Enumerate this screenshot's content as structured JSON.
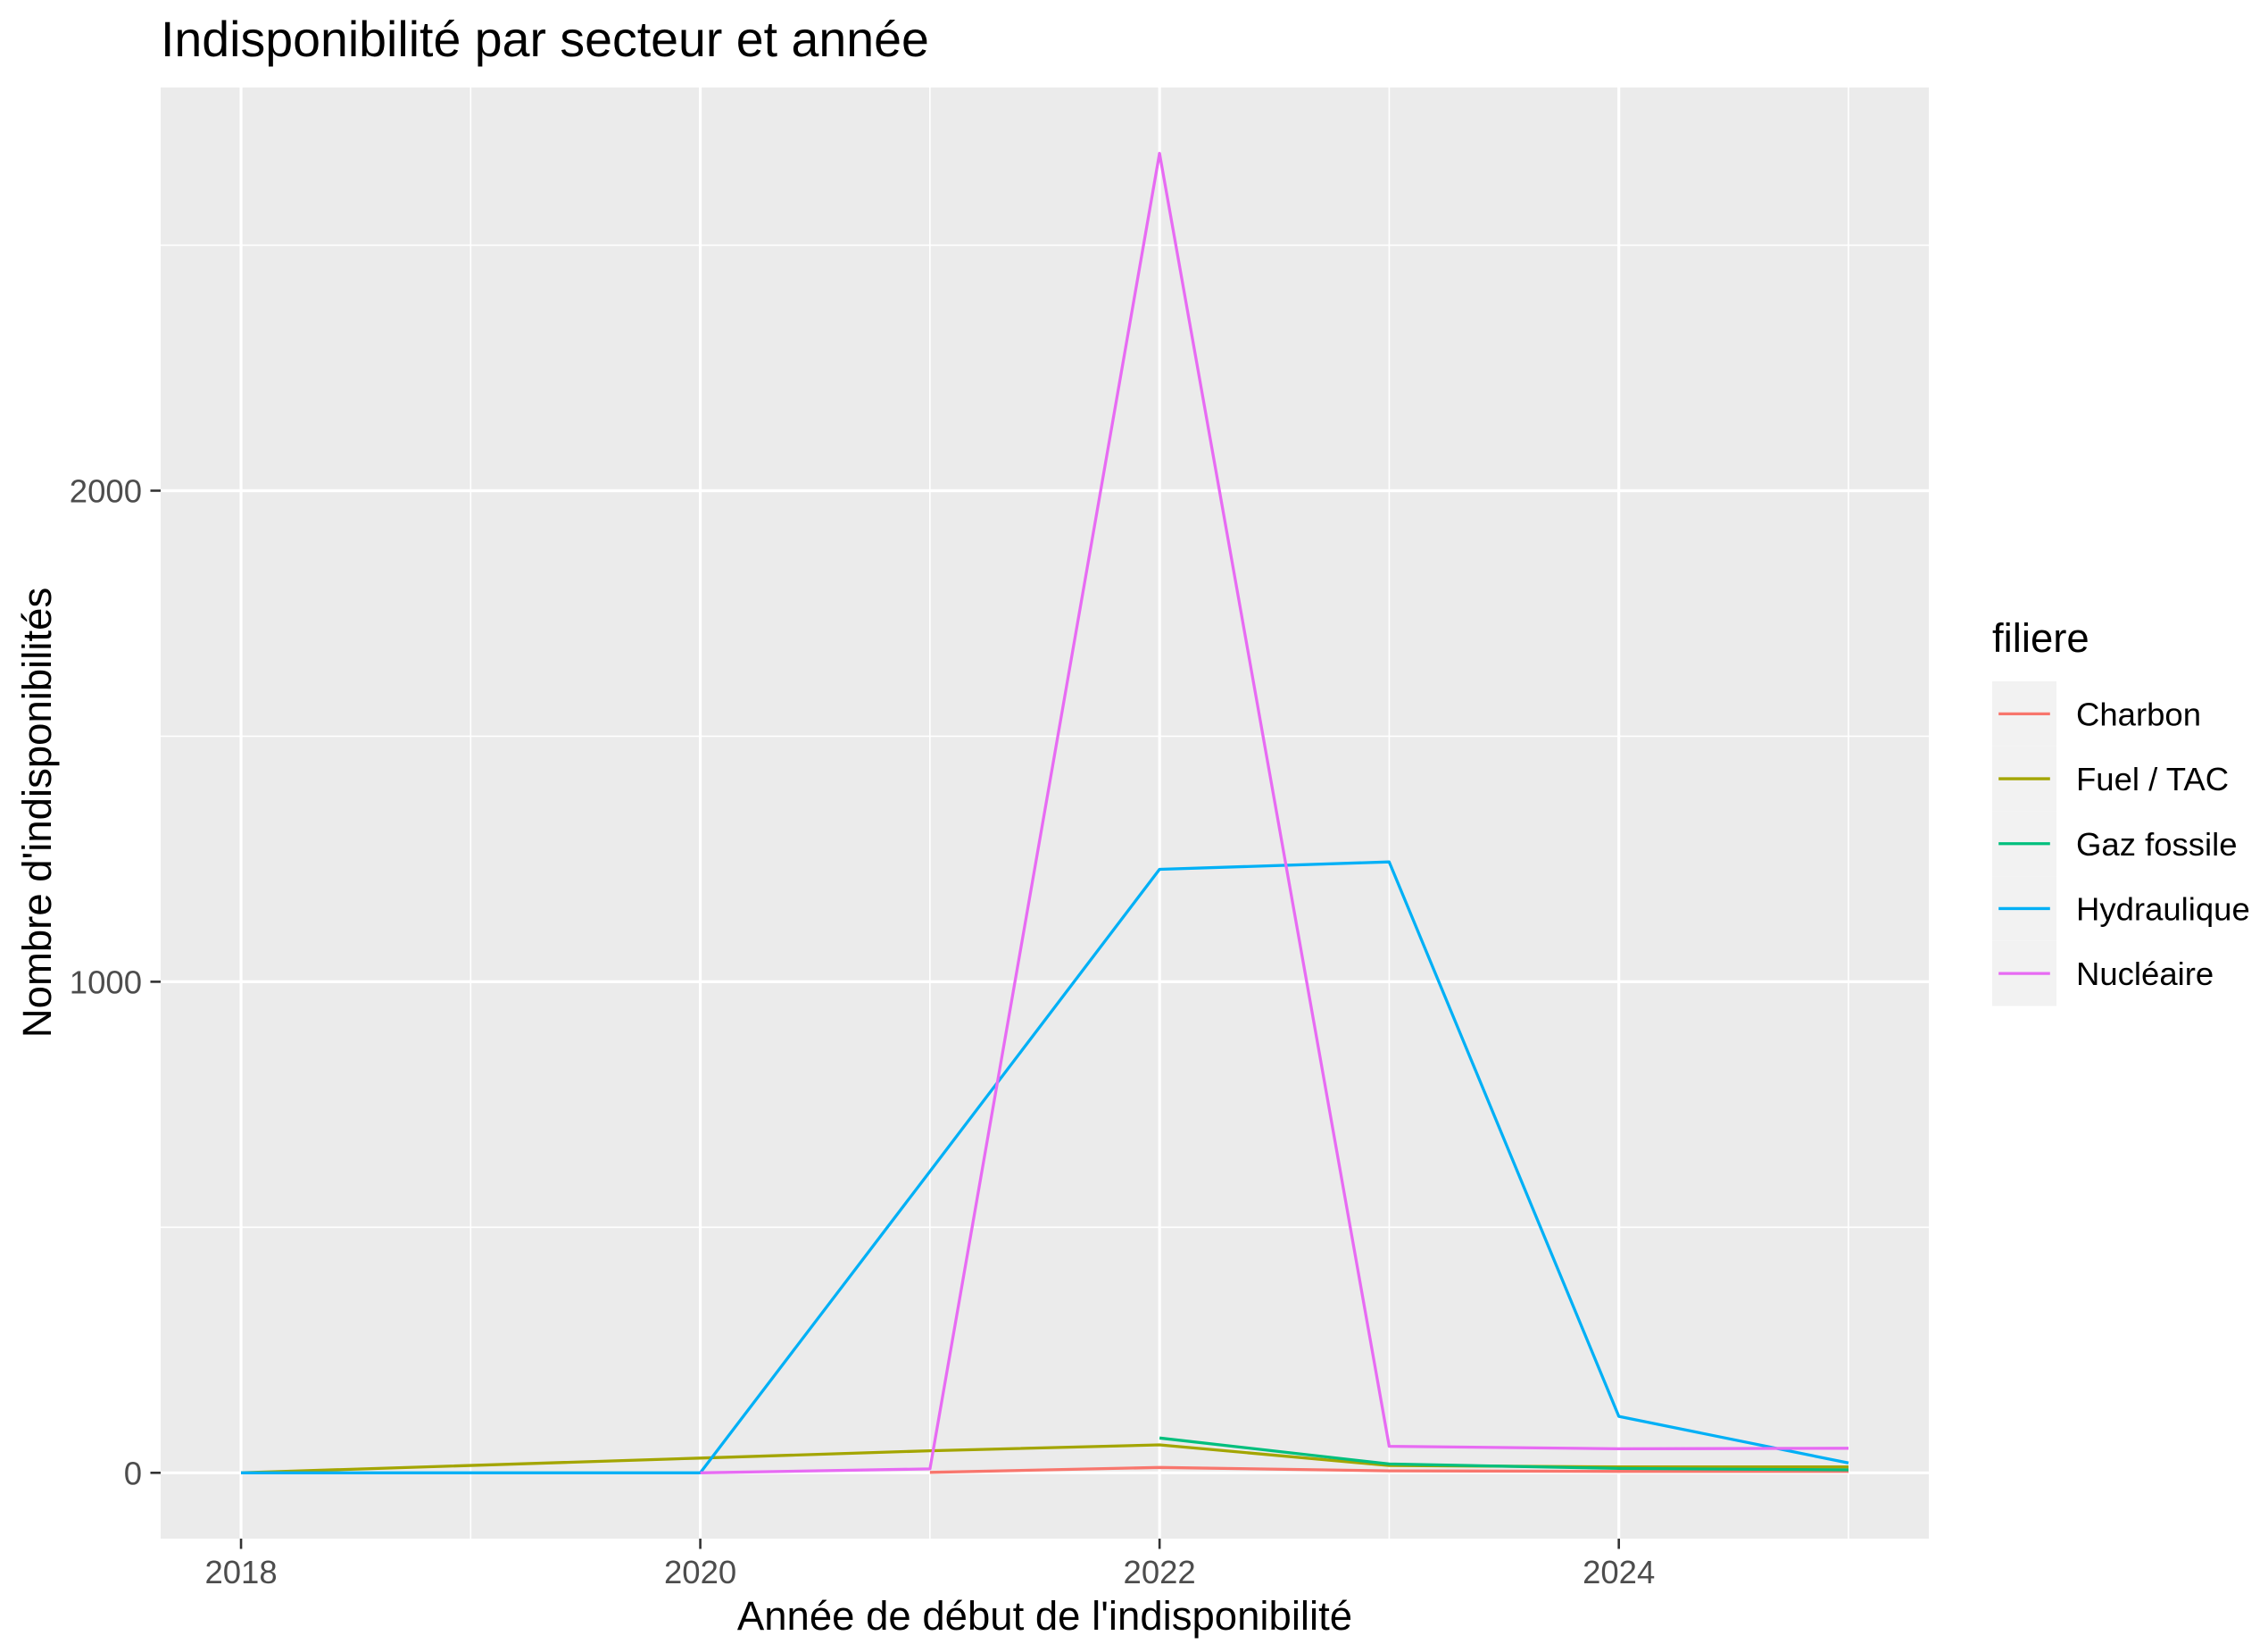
{
  "chart_data": {
    "type": "line",
    "title": "Indisponibilité par secteur et année",
    "xlabel": "Année de début de l'indisponibilité",
    "ylabel": "Nombre d'indisponibilités",
    "xlim": [
      2017.65,
      2025.35
    ],
    "ylim": [
      -134,
      2821
    ],
    "x_ticks": [
      2018,
      2020,
      2022,
      2024
    ],
    "x_minor_ticks": [
      2019,
      2021,
      2023,
      2025
    ],
    "y_ticks": [
      0,
      1000,
      2000
    ],
    "y_minor_ticks": [
      500,
      1500,
      2500
    ],
    "grid": true,
    "panel_background": "#EBEBEB",
    "legend": {
      "title": "filiere",
      "position": "right"
    },
    "series": [
      {
        "name": "Charbon",
        "color": "#F8766D",
        "x": [
          2021,
          2022,
          2023,
          2024,
          2025
        ],
        "y": [
          1,
          11,
          4,
          3,
          3
        ]
      },
      {
        "name": "Fuel / TAC",
        "color": "#A3A500",
        "x": [
          2018,
          2020,
          2021,
          2022,
          2023,
          2024,
          2025
        ],
        "y": [
          0,
          30,
          45,
          57,
          15,
          12,
          12
        ]
      },
      {
        "name": "Gaz fossile",
        "color": "#00BF7D",
        "x": [
          2022,
          2023,
          2024,
          2025
        ],
        "y": [
          71,
          18,
          9,
          6
        ]
      },
      {
        "name": "Hydraulique",
        "color": "#00B0F6",
        "x": [
          2018,
          2020,
          2021,
          2022,
          2023,
          2024,
          2025
        ],
        "y": [
          0,
          0,
          614,
          1229,
          1244,
          115,
          20
        ]
      },
      {
        "name": "Nucléaire",
        "color": "#E76BF3",
        "x": [
          2020,
          2021,
          2022,
          2023,
          2024,
          2025
        ],
        "y": [
          0,
          8,
          2687,
          54,
          49,
          50
        ]
      }
    ]
  }
}
